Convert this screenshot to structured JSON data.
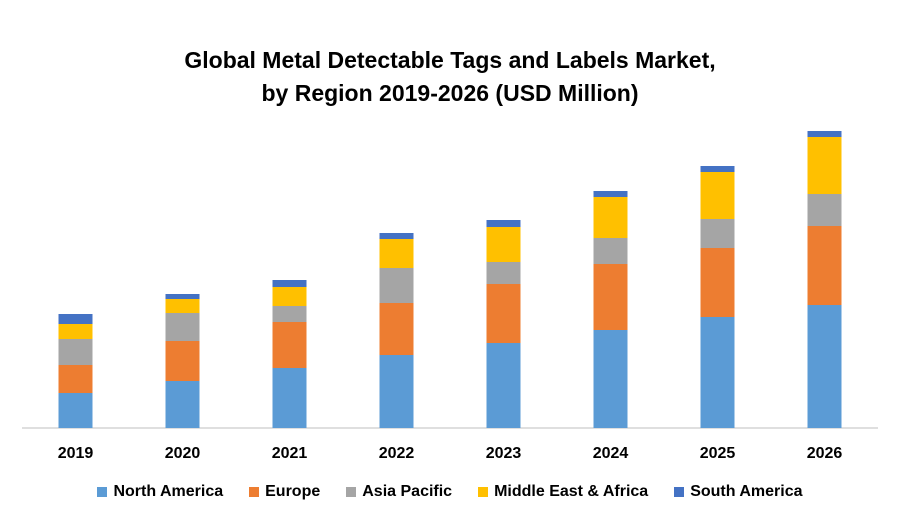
{
  "chart_data": {
    "type": "bar",
    "stacked": true,
    "title_line1": "Global Metal Detectable Tags and Labels Market,",
    "title_line2": "by Region 2019-2026 (USD Million)",
    "xlabel": "",
    "ylabel": "",
    "categories": [
      "2019",
      "2020",
      "2021",
      "2022",
      "2023",
      "2024",
      "2025",
      "2026"
    ],
    "ylim": [
      0,
      300
    ],
    "grid": false,
    "legend_position": "bottom",
    "series": [
      {
        "name": "North America",
        "color": "#5B9BD5",
        "values": [
          35,
          47,
          60,
          73,
          85,
          98,
          111,
          123
        ]
      },
      {
        "name": "Europe",
        "color": "#ED7D31",
        "values": [
          28,
          40,
          46,
          52,
          59,
          66,
          69,
          79
        ]
      },
      {
        "name": "Asia Pacific",
        "color": "#A5A5A5",
        "values": [
          26,
          28,
          16,
          35,
          22,
          26,
          29,
          32
        ]
      },
      {
        "name": "Middle East & Africa",
        "color": "#FFC000",
        "values": [
          15,
          14,
          19,
          29,
          35,
          41,
          47,
          57
        ]
      },
      {
        "name": "South America",
        "color": "#4472C4",
        "values": [
          10,
          5,
          7,
          6,
          7,
          6,
          6,
          6
        ]
      }
    ]
  }
}
